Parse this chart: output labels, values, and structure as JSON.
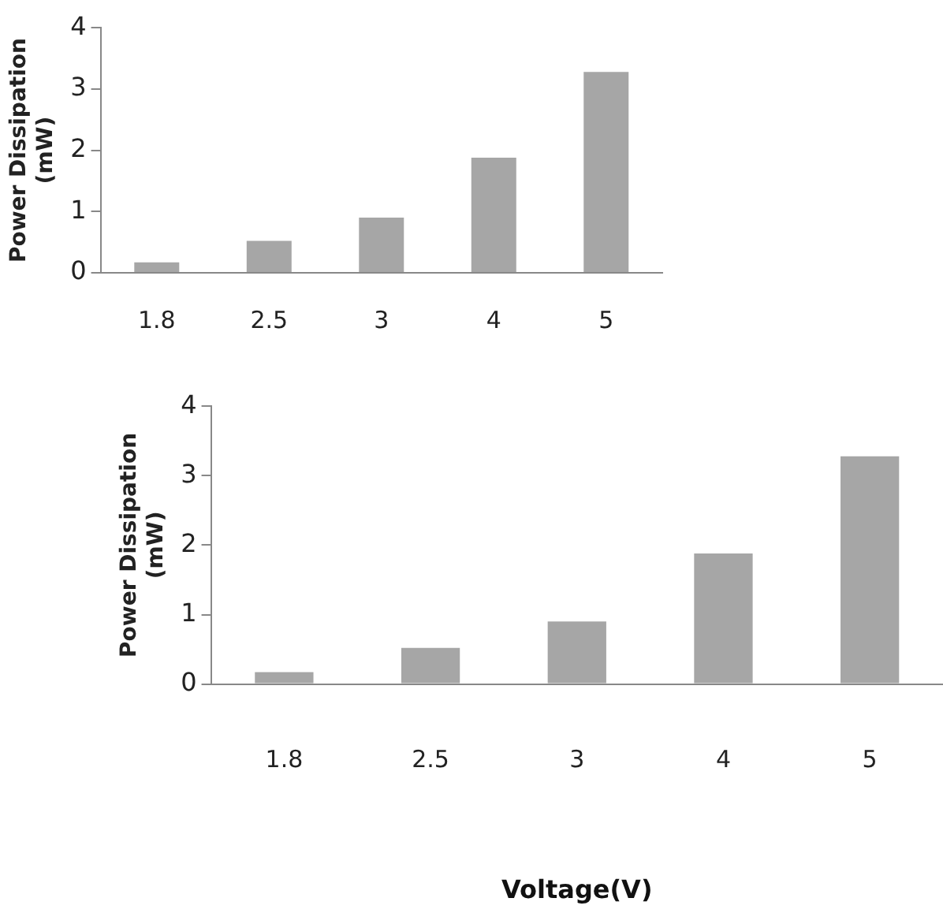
{
  "chart_data": [
    {
      "type": "bar",
      "ylabel": "Power Dissipation (mW)",
      "categories": [
        "1.8",
        "2.5",
        "3",
        "4",
        "5"
      ],
      "values": [
        0.17,
        0.52,
        0.9,
        1.88,
        3.28
      ],
      "color": "#a6a6a6",
      "ylim": [
        0,
        4
      ],
      "yticks": [
        0,
        1,
        2,
        3,
        4
      ],
      "grid": false,
      "legend": false
    },
    {
      "type": "bar",
      "xlabel": "Voltage(V)",
      "ylabel": "Power Dissipation (mW)",
      "categories": [
        "1.8",
        "2.5",
        "3",
        "4",
        "5"
      ],
      "values": [
        0.17,
        0.52,
        0.9,
        1.88,
        3.28
      ],
      "color": "#a6a6a6",
      "ylim": [
        0,
        4
      ],
      "yticks": [
        0,
        1,
        2,
        3,
        4
      ],
      "grid": false,
      "legend": false
    }
  ]
}
